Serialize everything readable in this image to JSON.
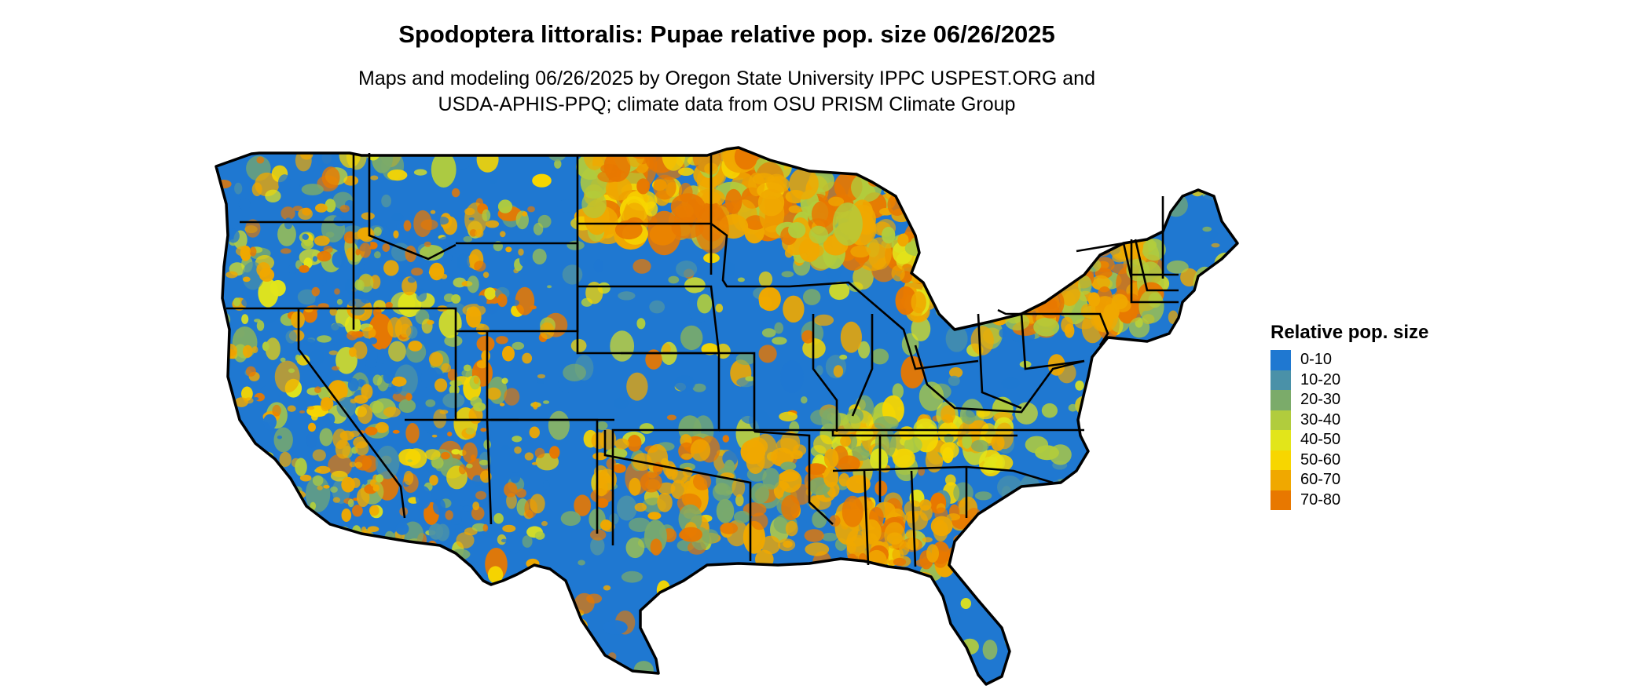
{
  "title": "Spodoptera littoralis: Pupae relative pop. size 06/26/2025",
  "subtitle_line1": "Maps and modeling 06/26/2025 by Oregon State University IPPC USPEST.ORG and",
  "subtitle_line2": "USDA-APHIS-PPQ; climate data from OSU PRISM Climate Group",
  "legend": {
    "title": "Relative pop. size",
    "items": [
      {
        "label": "0-10",
        "color": "#1f78d1"
      },
      {
        "label": "10-20",
        "color": "#4a91a8"
      },
      {
        "label": "20-30",
        "color": "#7bab6a"
      },
      {
        "label": "30-40",
        "color": "#b1cc3d"
      },
      {
        "label": "40-50",
        "color": "#e2e51a"
      },
      {
        "label": "50-60",
        "color": "#f7d600"
      },
      {
        "label": "60-70",
        "color": "#f0a800"
      },
      {
        "label": "70-80",
        "color": "#e87800"
      }
    ]
  }
}
